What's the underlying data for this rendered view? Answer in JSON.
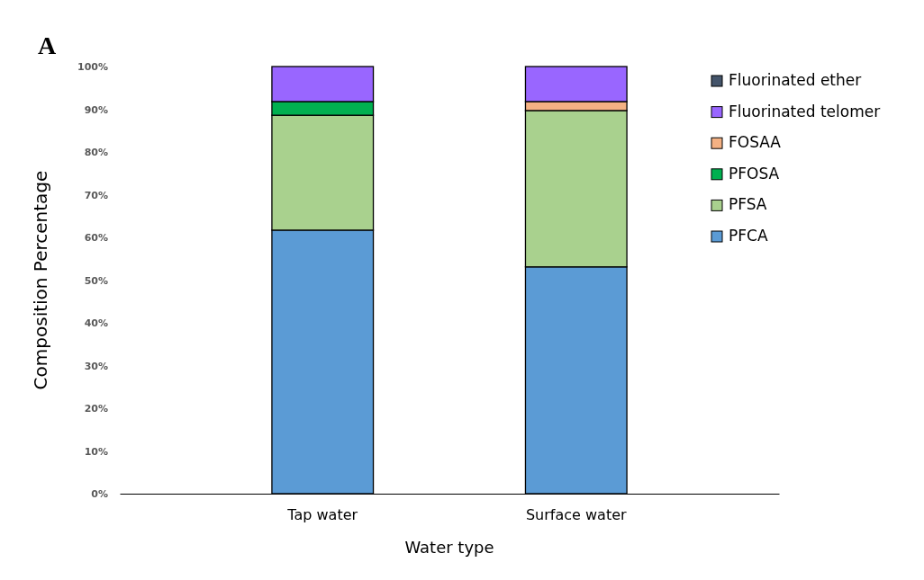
{
  "chart_data": {
    "type": "bar",
    "title": "A",
    "xlabel": "Water type",
    "ylabel": "Composition Percentage",
    "categories": [
      "Tap water",
      "Surface water"
    ],
    "stacked": true,
    "legend": "right",
    "grid": false,
    "ylim": [
      0,
      100
    ],
    "yticks": [
      {
        "value": 0,
        "label": "0%"
      },
      {
        "value": 10,
        "label": "10%"
      },
      {
        "value": 20,
        "label": "20%"
      },
      {
        "value": 30,
        "label": "30%"
      },
      {
        "value": 40,
        "label": "40%"
      },
      {
        "value": 50,
        "label": "50%"
      },
      {
        "value": 60,
        "label": "60%"
      },
      {
        "value": 70,
        "label": "70%"
      },
      {
        "value": 80,
        "label": "80%"
      },
      {
        "value": 90,
        "label": "90%"
      },
      {
        "value": 100,
        "label": "100%"
      }
    ],
    "series": [
      {
        "name": "PFCA",
        "color": "#5b9bd5",
        "values": [
          61.7,
          53.1
        ]
      },
      {
        "name": "PFSA",
        "color": "#a9d18e",
        "values": [
          26.9,
          36.6
        ]
      },
      {
        "name": "PFOSA",
        "color": "#00b050",
        "values": [
          3.2,
          0
        ]
      },
      {
        "name": "FOSAA",
        "color": "#f4b183",
        "values": [
          null,
          2.1
        ]
      },
      {
        "name": "Fluorinated telomer",
        "color": "#9966ff",
        "values": [
          8.2,
          8.2
        ]
      },
      {
        "name": "Fluorinated ether",
        "color": "#44546a",
        "values": [
          0,
          0
        ]
      }
    ]
  }
}
